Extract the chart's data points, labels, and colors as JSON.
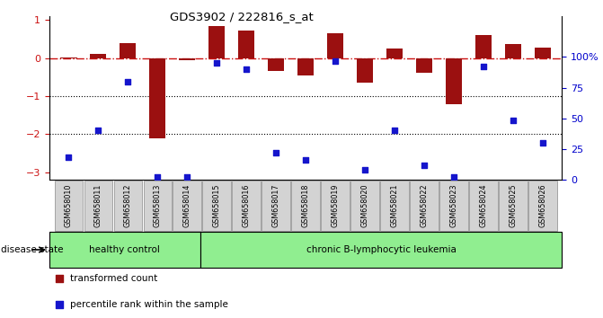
{
  "title": "GDS3902 / 222816_s_at",
  "samples": [
    "GSM658010",
    "GSM658011",
    "GSM658012",
    "GSM658013",
    "GSM658014",
    "GSM658015",
    "GSM658016",
    "GSM658017",
    "GSM658018",
    "GSM658019",
    "GSM658020",
    "GSM658021",
    "GSM658022",
    "GSM658023",
    "GSM658024",
    "GSM658025",
    "GSM658026"
  ],
  "transformed_count": [
    0.02,
    0.1,
    0.38,
    -2.12,
    -0.06,
    0.85,
    0.72,
    -0.35,
    -0.47,
    0.65,
    -0.65,
    0.24,
    -0.38,
    -1.22,
    0.6,
    0.37,
    0.27
  ],
  "percentile_rank": [
    18,
    40,
    80,
    2,
    2,
    95,
    90,
    22,
    16,
    97,
    8,
    40,
    12,
    2,
    92,
    48,
    30
  ],
  "healthy_count": 5,
  "ylim_left": [
    -3.2,
    1.1
  ],
  "ylim_right": [
    0,
    133.33
  ],
  "yticks_left": [
    1,
    0,
    -1,
    -2,
    -3
  ],
  "yticks_right": [
    100,
    75,
    50,
    25,
    0
  ],
  "ytick_right_labels": [
    "100%",
    "75",
    "50",
    "25",
    "0"
  ],
  "group1_label": "healthy control",
  "group2_label": "chronic B-lymphocytic leukemia",
  "disease_state_label": "disease state",
  "legend_red": "transformed count",
  "legend_blue": "percentile rank within the sample",
  "bar_color": "#9B1010",
  "square_color": "#1515CC",
  "hline_color": "#CC1111",
  "right_axis_color": "#0000CC",
  "left_axis_color": "#CC1111",
  "background_color": "#FFFFFF",
  "green_bg": "#90EE90",
  "grey_label_bg": "#D3D3D3",
  "grey_label_edge": "#888888"
}
